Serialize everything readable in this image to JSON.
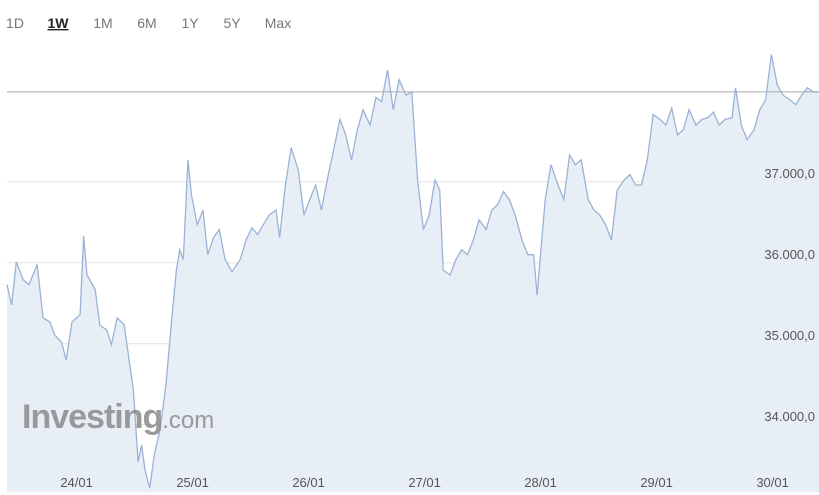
{
  "toolbar": {
    "buttons": [
      "1D",
      "1W",
      "1M",
      "6M",
      "1Y",
      "5Y",
      "Max"
    ],
    "active": 1
  },
  "watermark": [
    "Investing",
    ".com"
  ],
  "chart_data": {
    "type": "area",
    "color": "#9bb2d6",
    "fill": "#e8eef6",
    "grid": true,
    "reference_line": 38110,
    "reference_color": "#aaaaaa",
    "xlim": [
      23.4,
      30.4
    ],
    "ylim": [
      33170,
      38750
    ],
    "xticks": [
      {
        "value": 24,
        "label": "24/01"
      },
      {
        "value": 25,
        "label": "25/01"
      },
      {
        "value": 26,
        "label": "26/01"
      },
      {
        "value": 27,
        "label": "27/01"
      },
      {
        "value": 28,
        "label": "28/01"
      },
      {
        "value": 29,
        "label": "29/01"
      },
      {
        "value": 30,
        "label": "30/01"
      }
    ],
    "yticks": [
      {
        "value": 34000,
        "label": "34.000,0"
      },
      {
        "value": 35000,
        "label": "35.000,0"
      },
      {
        "value": 36000,
        "label": "36.000,0"
      },
      {
        "value": 37000,
        "label": "37.000,0"
      }
    ],
    "x": [
      23.4,
      23.44,
      23.48,
      23.54,
      23.59,
      23.66,
      23.71,
      23.77,
      23.81,
      23.87,
      23.91,
      23.96,
      24.03,
      24.06,
      24.09,
      24.16,
      24.2,
      24.26,
      24.3,
      24.35,
      24.41,
      24.44,
      24.49,
      24.53,
      24.56,
      24.59,
      24.63,
      24.67,
      24.72,
      24.77,
      24.82,
      24.86,
      24.89,
      24.92,
      24.96,
      24.99,
      25.04,
      25.09,
      25.13,
      25.18,
      25.23,
      25.28,
      25.34,
      25.41,
      25.46,
      25.51,
      25.56,
      25.61,
      25.66,
      25.72,
      25.75,
      25.8,
      25.85,
      25.91,
      25.96,
      26.01,
      26.06,
      26.11,
      26.16,
      26.22,
      26.27,
      26.32,
      26.37,
      26.42,
      26.47,
      26.53,
      26.58,
      26.63,
      26.68,
      26.73,
      26.78,
      26.84,
      26.89,
      26.94,
      26.99,
      27.04,
      27.09,
      27.13,
      27.16,
      27.22,
      27.27,
      27.32,
      27.37,
      27.42,
      27.47,
      27.53,
      27.58,
      27.63,
      27.68,
      27.73,
      27.78,
      27.84,
      27.89,
      27.94,
      27.97,
      28.01,
      28.04,
      28.09,
      28.15,
      28.2,
      28.25,
      28.3,
      28.35,
      28.41,
      28.46,
      28.51,
      28.56,
      28.61,
      28.66,
      28.72,
      28.77,
      28.82,
      28.87,
      28.92,
      28.97,
      29.03,
      29.08,
      29.13,
      29.18,
      29.23,
      29.28,
      29.34,
      29.39,
      29.44,
      29.49,
      29.54,
      29.59,
      29.65,
      29.68,
      29.73,
      29.78,
      29.84,
      29.89,
      29.94,
      29.99,
      30.04,
      30.09,
      30.15,
      30.2,
      30.25,
      30.3,
      30.35,
      30.4
    ],
    "values": [
      35730,
      35480,
      36010,
      35790,
      35730,
      35980,
      35320,
      35270,
      35110,
      35020,
      34800,
      35270,
      35360,
      36330,
      35850,
      35670,
      35230,
      35170,
      34990,
      35320,
      35230,
      34930,
      34430,
      33540,
      33750,
      33440,
      33220,
      33630,
      33940,
      34490,
      35300,
      35910,
      36160,
      36040,
      37270,
      36840,
      36470,
      36650,
      36100,
      36310,
      36410,
      36040,
      35890,
      36040,
      36280,
      36430,
      36350,
      36470,
      36590,
      36650,
      36310,
      36960,
      37420,
      37150,
      36590,
      36780,
      36960,
      36650,
      37020,
      37420,
      37770,
      37580,
      37270,
      37640,
      37890,
      37700,
      38040,
      37990,
      38380,
      37890,
      38260,
      38070,
      38110,
      37020,
      36410,
      36590,
      37020,
      36900,
      35910,
      35850,
      36040,
      36160,
      36100,
      36280,
      36530,
      36410,
      36650,
      36720,
      36880,
      36780,
      36590,
      36280,
      36100,
      36100,
      35600,
      36280,
      36780,
      37210,
      36960,
      36780,
      37330,
      37210,
      37270,
      36780,
      36650,
      36590,
      36470,
      36280,
      36900,
      37020,
      37090,
      36960,
      36960,
      37270,
      37830,
      37770,
      37700,
      37910,
      37580,
      37640,
      37890,
      37700,
      37770,
      37790,
      37860,
      37700,
      37770,
      37790,
      38160,
      37700,
      37520,
      37640,
      37890,
      38010,
      38570,
      38200,
      38070,
      38010,
      37950,
      38070,
      38160,
      38110,
      38110
    ]
  }
}
